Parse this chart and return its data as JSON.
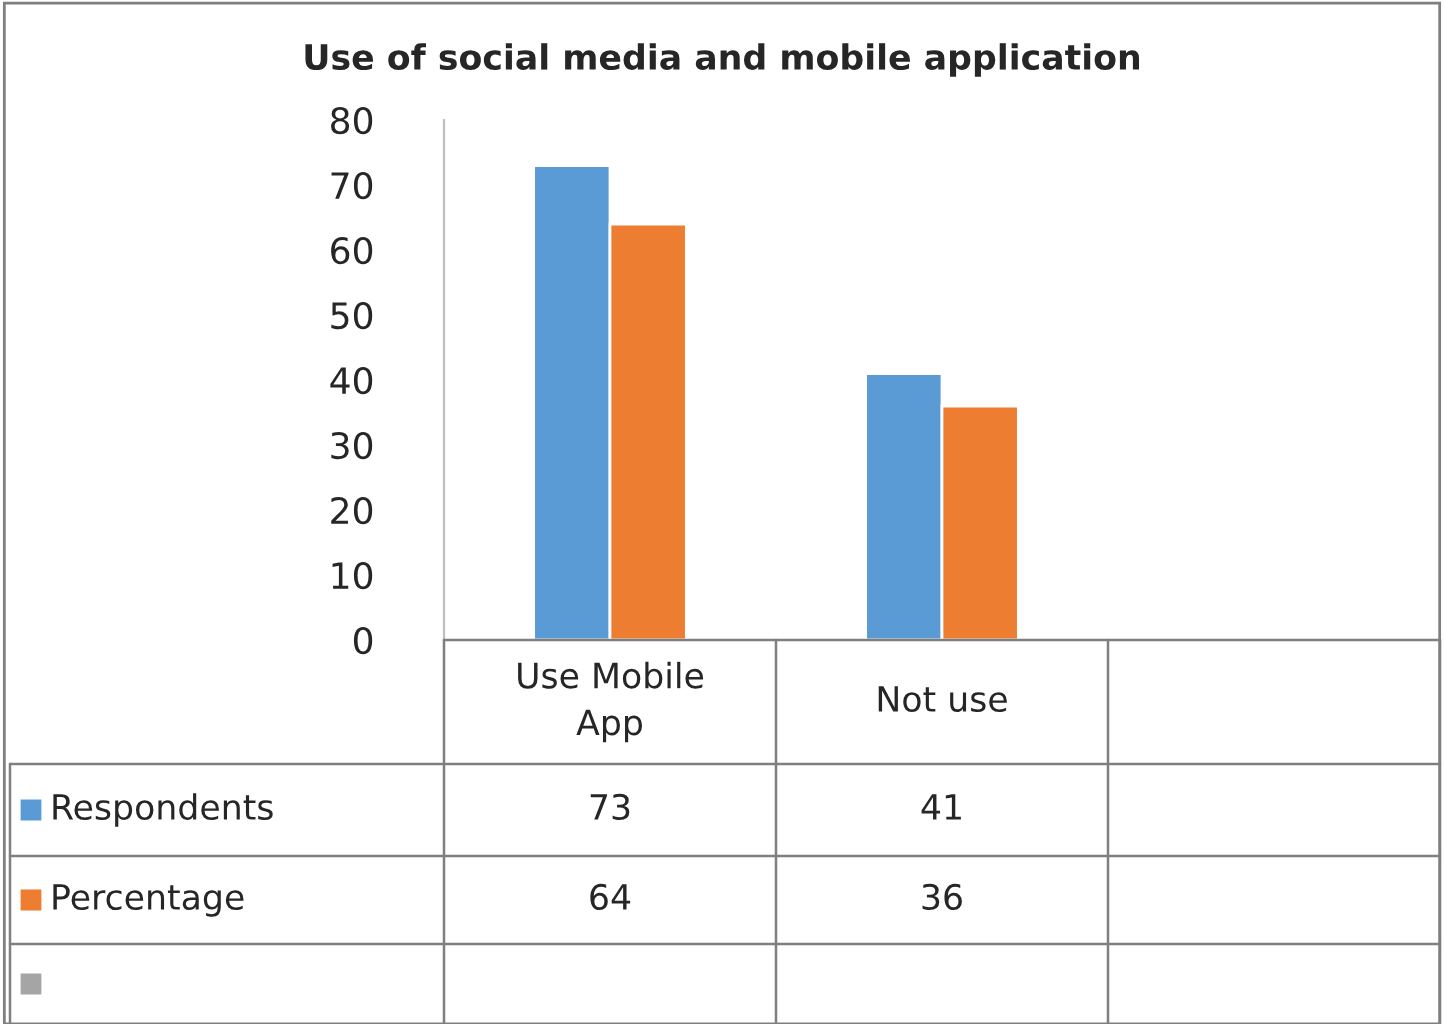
{
  "chart_data": {
    "type": "bar",
    "title": "Use of social media and mobile application",
    "categories": [
      "Use Mobile\nApp",
      "Not use",
      null
    ],
    "series": [
      {
        "name": "Respondents",
        "color": "#5b9bd5",
        "values": [
          73,
          41,
          null
        ]
      },
      {
        "name": "Percentage",
        "color": "#ed7d31",
        "values": [
          64,
          36,
          null
        ]
      },
      {
        "color": "#a5a5a5",
        "values": [
          null,
          null,
          null
        ]
      }
    ],
    "ylim": [
      0,
      80
    ],
    "yticks": [
      0,
      10,
      20,
      30,
      40,
      50,
      60,
      70,
      80
    ],
    "grid": false,
    "data_labels": true,
    "legend": "bottom left"
  }
}
